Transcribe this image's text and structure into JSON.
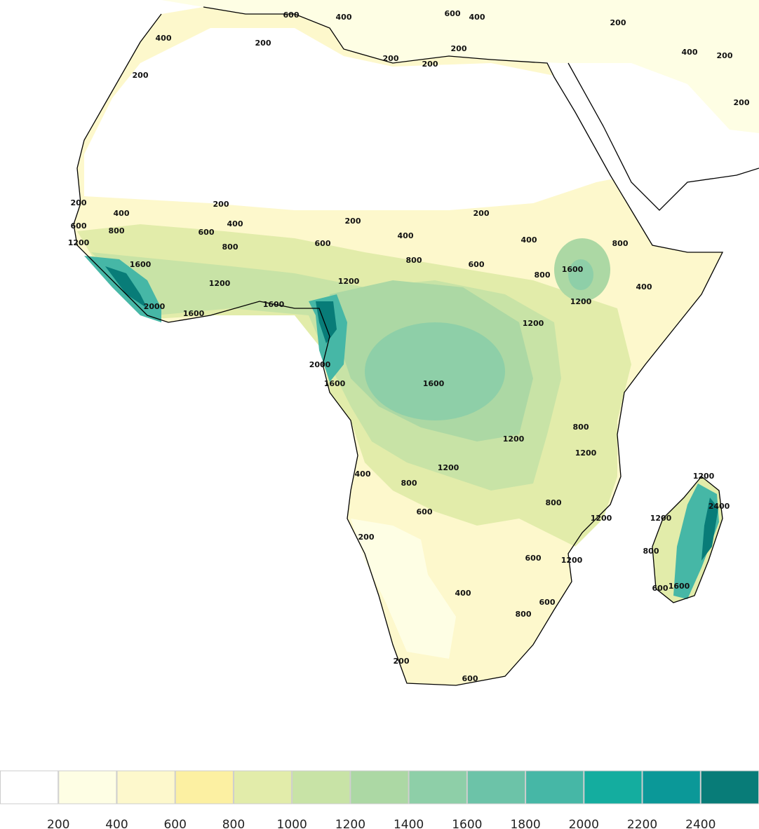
{
  "map": {
    "contour_labels": [
      600,
      400,
      200,
      400,
      200,
      200,
      200,
      600,
      200,
      400,
      200,
      200,
      400,
      200,
      200,
      400,
      600,
      800,
      1200,
      600,
      800,
      1600,
      2000,
      1600,
      1200,
      1600,
      400,
      200,
      600,
      800,
      1200,
      400,
      800,
      1600,
      1200,
      800,
      1600,
      1200,
      600,
      2000,
      1600,
      1200,
      800,
      1200,
      800,
      600,
      400,
      1200,
      600,
      800,
      1200,
      200,
      1200,
      600,
      400,
      800,
      200,
      600,
      1200,
      2400,
      1200,
      800,
      600,
      1600,
      200,
      200,
      400,
      400
    ],
    "colorbar": {
      "ticks": [
        200,
        400,
        600,
        800,
        1000,
        1200,
        1400,
        1600,
        1800,
        2000,
        2200,
        2400
      ],
      "colors": [
        "#ffffff",
        "#fefee4",
        "#fdf8cc",
        "#fcf0a2",
        "#e2ecaa",
        "#c8e3a6",
        "#acd8a4",
        "#8ecfa8",
        "#6cc3a8",
        "#46b7a6",
        "#14ad9f",
        "#0b9898",
        "#087c78"
      ]
    }
  }
}
